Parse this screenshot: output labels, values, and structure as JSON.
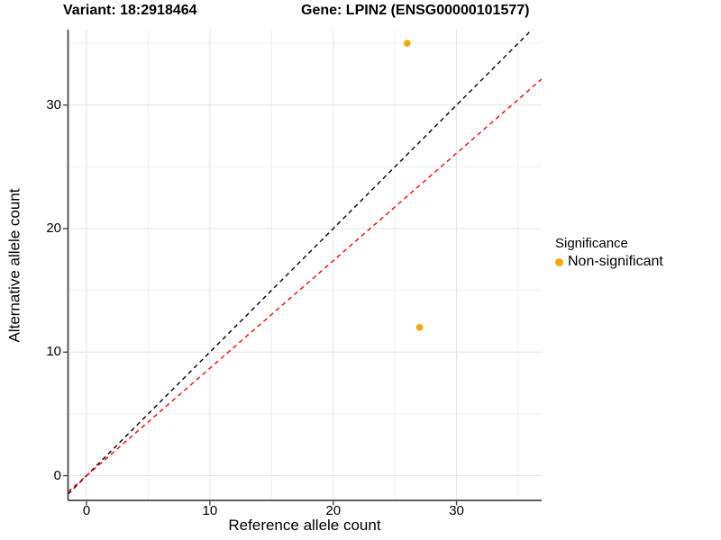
{
  "titles": {
    "variant": "Variant: 18:2918464",
    "gene": "Gene: LPIN2 (ENSG00000101577)"
  },
  "chart_data": {
    "type": "scatter",
    "xlabel": "Reference allele count",
    "ylabel": "Alternative allele count",
    "xlim": [
      -1.5,
      36.9
    ],
    "ylim": [
      -2.0,
      36.1
    ],
    "x_ticks": [
      0,
      10,
      20,
      30
    ],
    "y_ticks": [
      0,
      10,
      20,
      30
    ],
    "x_minor_ticks": [
      5,
      15,
      25,
      35
    ],
    "y_minor_ticks": [
      5,
      15,
      25,
      35
    ],
    "grid": "major+minor",
    "points": [
      {
        "x": 26,
        "y": 35,
        "series": "Non-significant"
      },
      {
        "x": 27,
        "y": 12,
        "series": "Non-significant"
      }
    ],
    "point_color": "#FFA500",
    "lines": [
      {
        "name": "identity-line",
        "slope": 1.0,
        "intercept": 0,
        "color": "#000000",
        "style": "dashed"
      },
      {
        "name": "fitted-line",
        "slope": 0.87,
        "intercept": 0,
        "color": "#FF0000",
        "style": "dashed"
      }
    ],
    "legend": {
      "title": "Significance",
      "position": "right",
      "items": [
        {
          "label": "Non-significant",
          "color": "#FFA500"
        }
      ]
    },
    "colors": {
      "major_grid": "#E4E4E4",
      "minor_grid": "#F0F0F0",
      "axis_line": "#4A4A4A",
      "background": "#FFFFFF"
    }
  }
}
